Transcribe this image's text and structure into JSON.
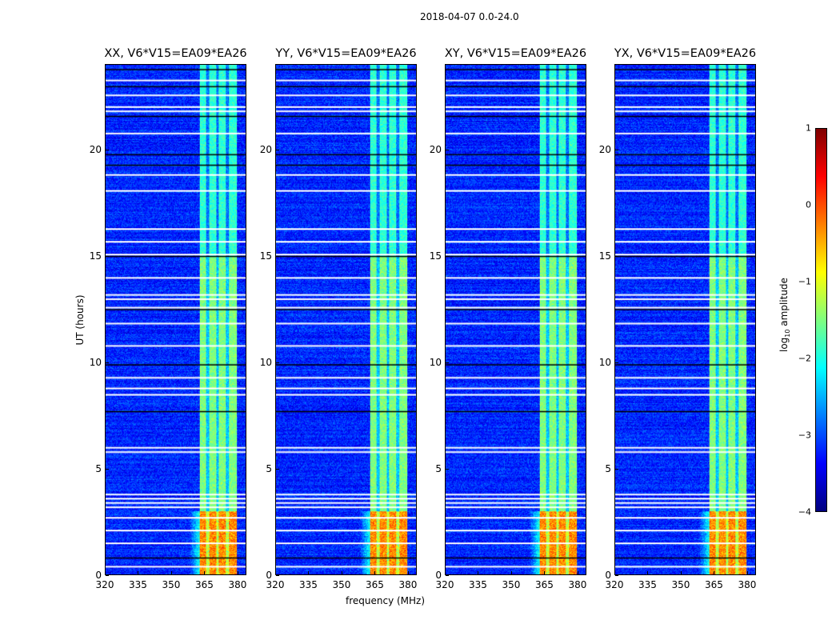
{
  "chart_data": {
    "type": "heatmap",
    "title": "2018-04-07 0.0-24.0",
    "xlabel": "frequency (MHz)",
    "ylabel": "UT (hours)",
    "xlim": [
      320,
      384
    ],
    "ylim": [
      0,
      24
    ],
    "xticks": [
      "320",
      "335",
      "350",
      "365",
      "380"
    ],
    "yticks": [
      "0",
      "5",
      "10",
      "15",
      "20"
    ],
    "panels": [
      {
        "title": "XX, V6*V15=EA09*EA26"
      },
      {
        "title": "YY, V6*V15=EA09*EA26"
      },
      {
        "title": "XY, V6*V15=EA09*EA26"
      },
      {
        "title": "YX, V6*V15=EA09*EA26"
      }
    ],
    "colorbar": {
      "label": "log10 amplitude",
      "label_main": "log",
      "label_sub": "10",
      "label_rest": " amplitude",
      "range": [
        -4,
        1
      ],
      "ticks": [
        "1",
        "0",
        "−1",
        "−2",
        "−3",
        "−4"
      ],
      "colormap": "jet"
    },
    "features": {
      "background_level": -3.2,
      "rfi_band_mhz": [
        363,
        380
      ],
      "rfi_band_level": -1.5,
      "strong_rfi_hours": [
        0,
        3
      ],
      "strong_rfi_level": -0.3,
      "flagged_hours": [
        0.4,
        1.5,
        2.1,
        2.7,
        3.2,
        3.4,
        3.6,
        3.8,
        5.8,
        6.0,
        8.5,
        8.8,
        9.3,
        10.8,
        11.85,
        12.6,
        13.0,
        13.2,
        14.0,
        15.1,
        15.7,
        16.3,
        18.1,
        18.85,
        20.8,
        21.85,
        22.05,
        22.6,
        23.3
      ],
      "missing_hours": [
        0.8,
        7.7,
        9.9,
        12.5,
        15.0,
        19.3,
        19.8,
        21.6,
        23.0,
        23.8
      ]
    }
  }
}
